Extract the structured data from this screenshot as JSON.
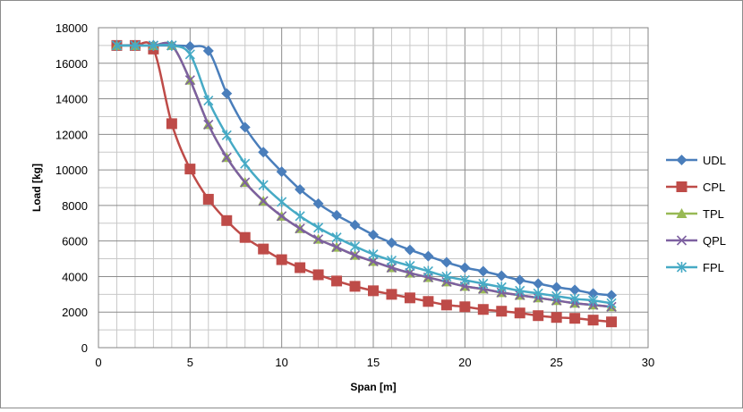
{
  "chart_data": {
    "type": "line",
    "title": "",
    "xlabel": "Span [m]",
    "ylabel": "Load [kg]",
    "xlim": [
      0,
      30
    ],
    "ylim": [
      0,
      18000
    ],
    "xticks": [
      0,
      5,
      10,
      15,
      20,
      25,
      30
    ],
    "yticks": [
      0,
      2000,
      4000,
      6000,
      8000,
      10000,
      12000,
      14000,
      16000,
      18000
    ],
    "grid": true,
    "legend_position": "right",
    "x": [
      1,
      2,
      3,
      4,
      5,
      6,
      7,
      8,
      9,
      10,
      11,
      12,
      13,
      14,
      15,
      16,
      17,
      18,
      19,
      20,
      21,
      22,
      23,
      24,
      25,
      26,
      27,
      28
    ],
    "series": [
      {
        "name": "UDL",
        "color": "#4a7ebb",
        "marker": "diamond",
        "values": [
          17000,
          17000,
          17000,
          17000,
          16950,
          16700,
          14300,
          12400,
          11000,
          9900,
          8900,
          8100,
          7450,
          6900,
          6350,
          5900,
          5500,
          5150,
          4800,
          4500,
          4300,
          4050,
          3800,
          3600,
          3400,
          3250,
          3050,
          2950
        ]
      },
      {
        "name": "CPL",
        "color": "#be4b48",
        "marker": "square",
        "values": [
          17000,
          17000,
          16800,
          12600,
          10050,
          8350,
          7150,
          6200,
          5550,
          4950,
          4500,
          4100,
          3750,
          3450,
          3200,
          3000,
          2800,
          2600,
          2400,
          2300,
          2150,
          2050,
          1950,
          1800,
          1700,
          1650,
          1550,
          1450
        ]
      },
      {
        "name": "TPL",
        "color": "#98b954",
        "marker": "triangle",
        "values": [
          17000,
          17000,
          17000,
          17000,
          15050,
          12550,
          10700,
          9300,
          8250,
          7400,
          6700,
          6100,
          5650,
          5200,
          4850,
          4500,
          4200,
          3950,
          3700,
          3450,
          3300,
          3100,
          2950,
          2800,
          2650,
          2500,
          2400,
          2300
        ]
      },
      {
        "name": "QPL",
        "color": "#7d60a0",
        "marker": "x",
        "values": [
          17000,
          17000,
          17000,
          17000,
          15050,
          12550,
          10700,
          9300,
          8250,
          7400,
          6700,
          6100,
          5650,
          5200,
          4850,
          4500,
          4200,
          3950,
          3700,
          3450,
          3300,
          3100,
          2950,
          2800,
          2650,
          2500,
          2400,
          2300
        ]
      },
      {
        "name": "FPL",
        "color": "#46aac5",
        "marker": "asterisk",
        "values": [
          17000,
          17000,
          17000,
          17000,
          16500,
          13900,
          11950,
          10350,
          9150,
          8200,
          7400,
          6750,
          6200,
          5700,
          5250,
          4900,
          4600,
          4300,
          4000,
          3800,
          3600,
          3400,
          3200,
          3050,
          2900,
          2750,
          2650,
          2500
        ]
      }
    ]
  }
}
